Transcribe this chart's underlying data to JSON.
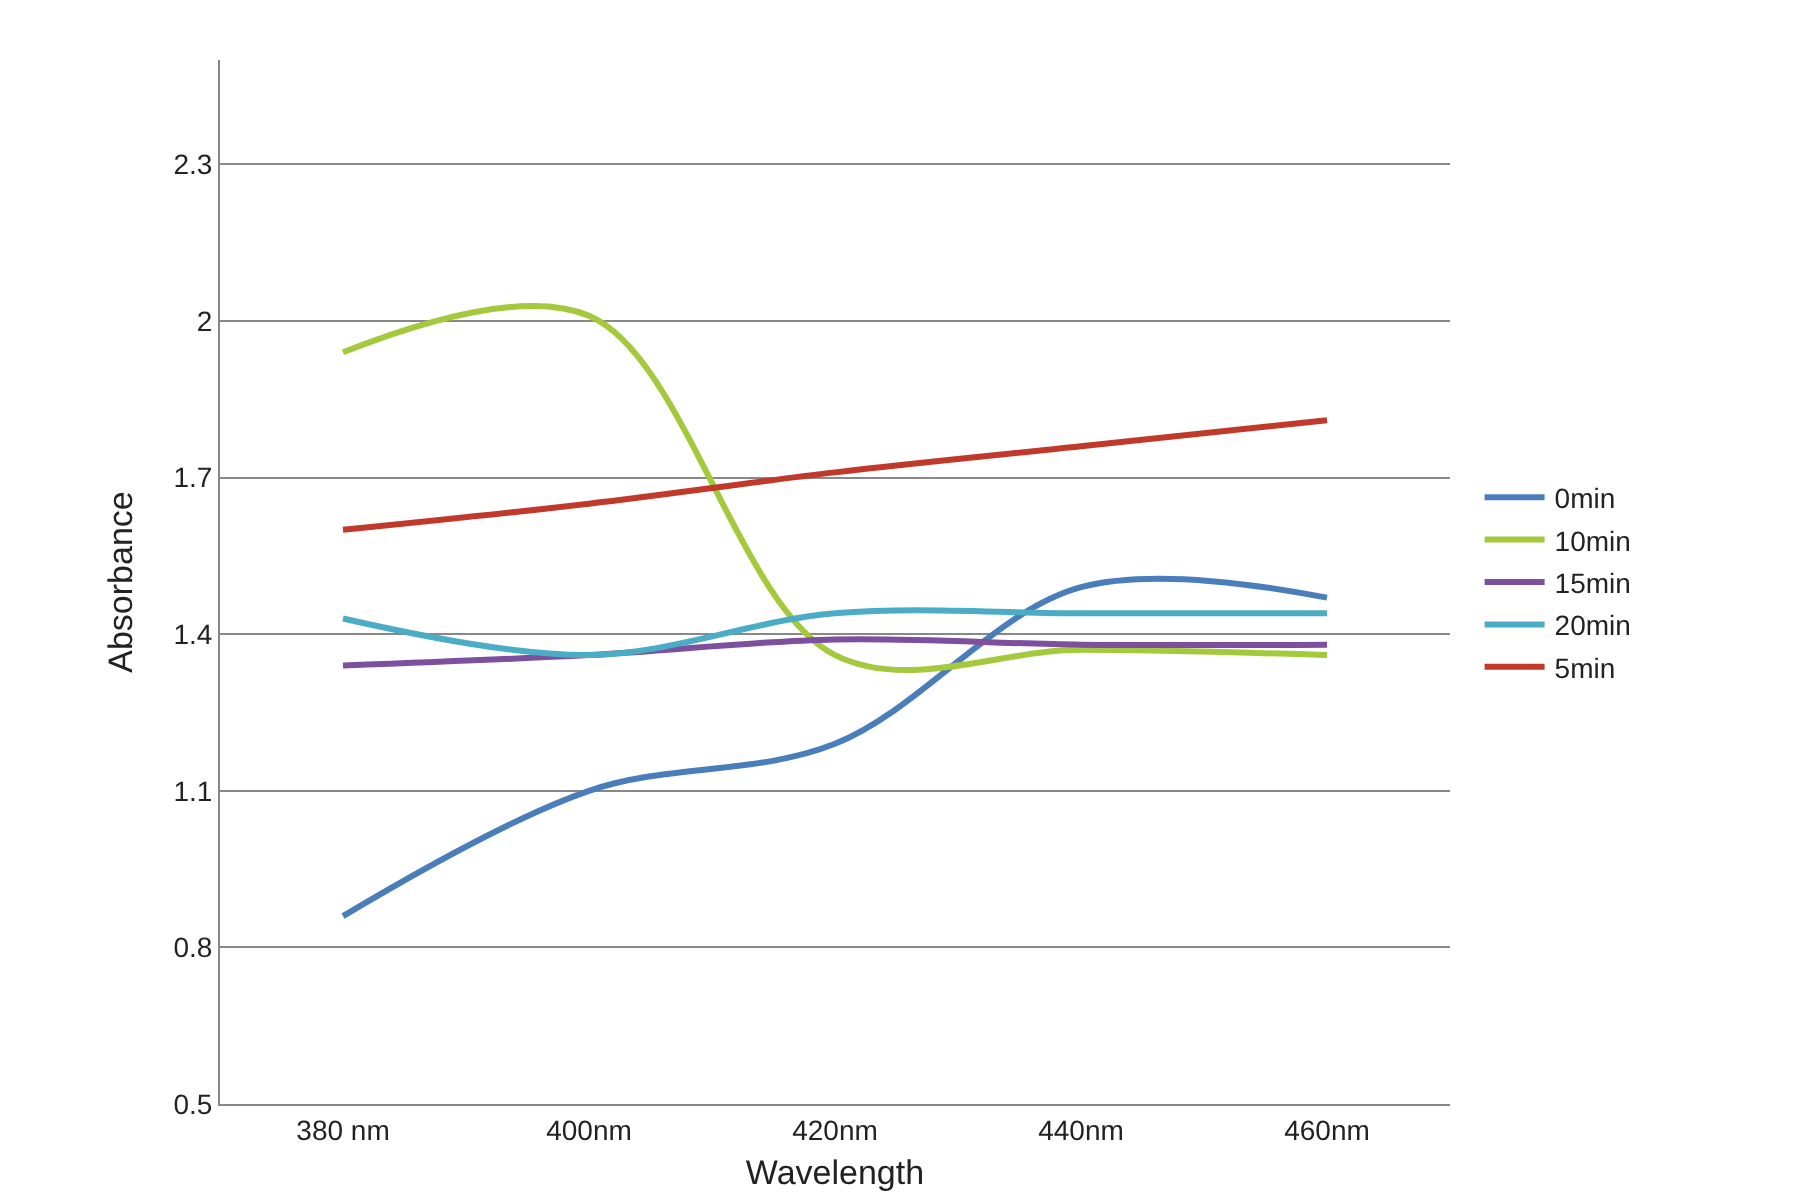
{
  "chart_data": {
    "type": "line",
    "xlabel": "Wavelength",
    "ylabel": "Absorbance",
    "categories": [
      "380 nm",
      "400nm",
      "420nm",
      "440nm",
      "460nm"
    ],
    "series": [
      {
        "name": "0min",
        "color": "#4a7ebb",
        "values": [
          0.86,
          1.1,
          1.19,
          1.49,
          1.47
        ]
      },
      {
        "name": "10min",
        "color": "#a4c93c",
        "values": [
          1.94,
          2.01,
          1.36,
          1.37,
          1.36
        ]
      },
      {
        "name": "15min",
        "color": "#7d4f9e",
        "values": [
          1.34,
          1.36,
          1.39,
          1.38,
          1.38
        ]
      },
      {
        "name": "20min",
        "color": "#4bacc6",
        "values": [
          1.43,
          1.36,
          1.44,
          1.44,
          1.44
        ]
      },
      {
        "name": "5min",
        "color": "#c0392b",
        "values": [
          1.6,
          1.65,
          1.71,
          1.76,
          1.81
        ]
      }
    ],
    "ylim": [
      0.5,
      2.5
    ],
    "yticks": [
      0.5,
      0.8,
      1.1,
      1.4,
      1.7,
      2,
      2.3
    ],
    "grid": "y",
    "legend": "right",
    "marker": "none",
    "line_style": "solid"
  }
}
